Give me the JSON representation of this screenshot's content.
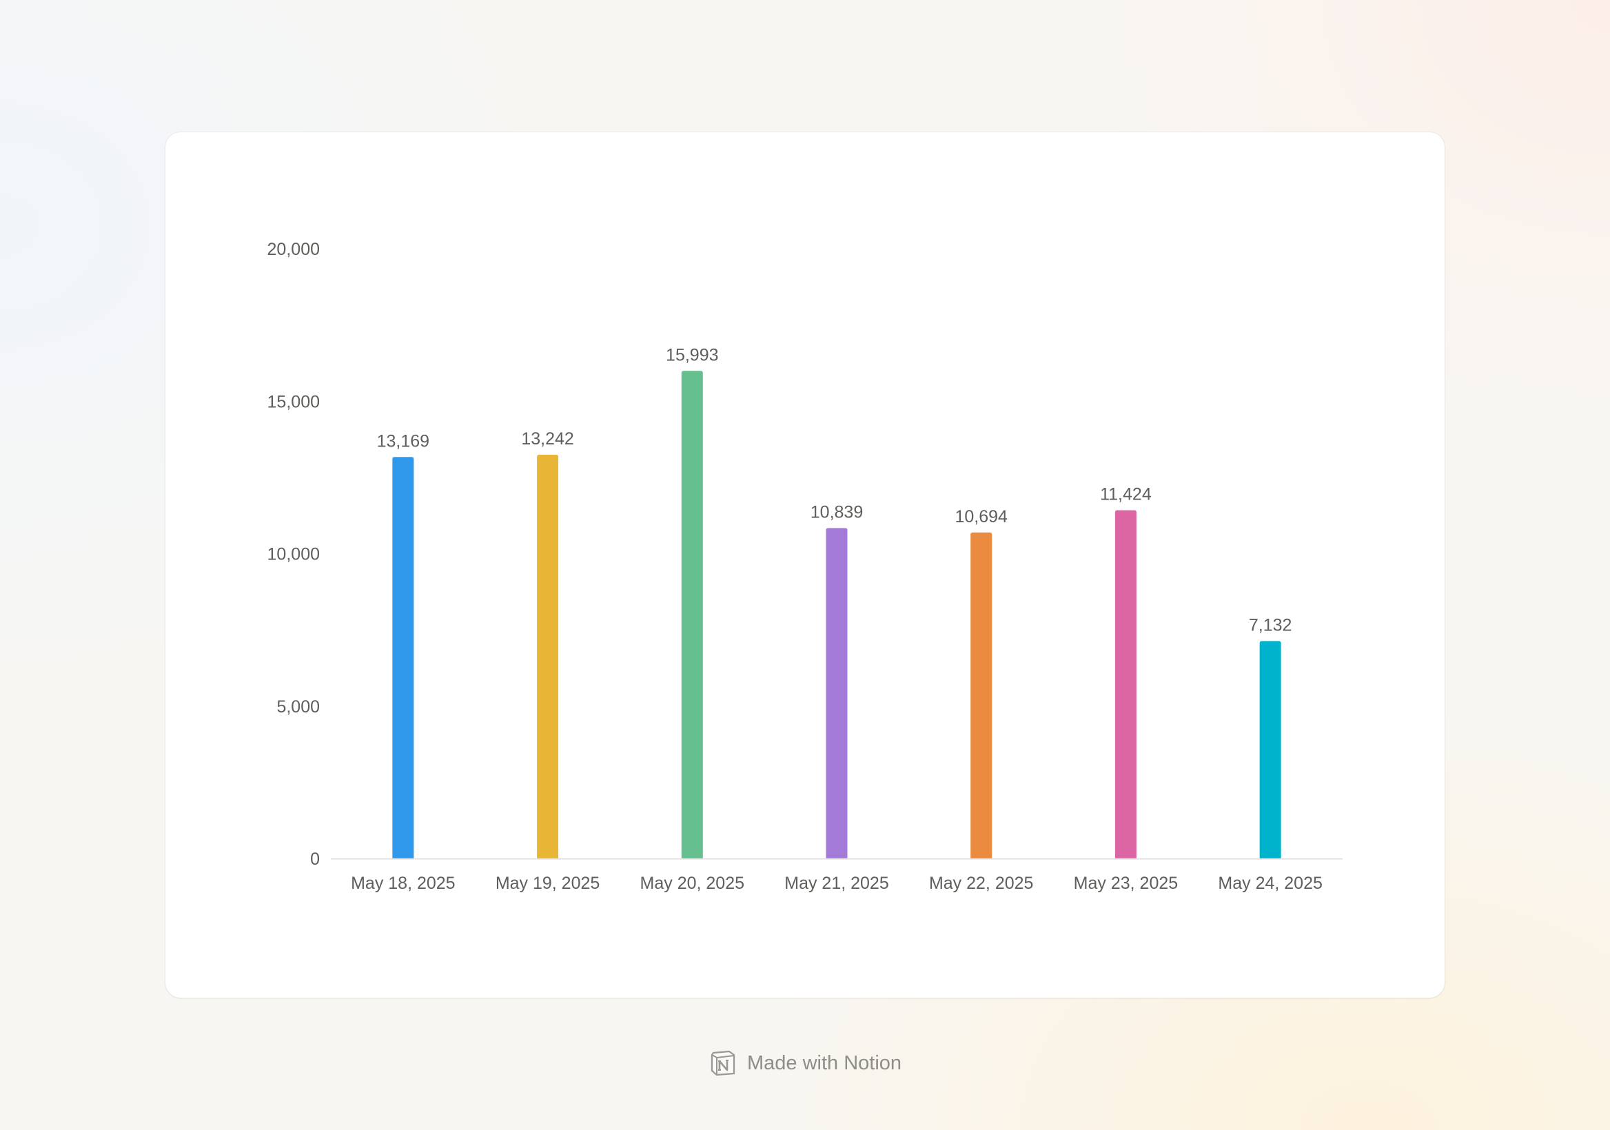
{
  "footer": {
    "text": "Made with Notion",
    "icon": "notion-logo-icon"
  },
  "chart_data": {
    "type": "bar",
    "title": "",
    "xlabel": "",
    "ylabel": "",
    "categories": [
      "May 18, 2025",
      "May 19, 2025",
      "May 20, 2025",
      "May 21, 2025",
      "May 22, 2025",
      "May 23, 2025",
      "May 24, 2025"
    ],
    "values": [
      13169,
      13242,
      15993,
      10839,
      10694,
      11424,
      7132
    ],
    "value_labels": [
      "13,169",
      "13,242",
      "15,993",
      "10,839",
      "10,694",
      "11,424",
      "7,132"
    ],
    "colors": [
      "#3098ea",
      "#e9b536",
      "#65bf8f",
      "#a47ad9",
      "#eb8b40",
      "#dc66a4",
      "#00b3cd"
    ],
    "ylim": [
      0,
      20000
    ],
    "yticks": [
      0,
      5000,
      10000,
      15000,
      20000
    ],
    "ytick_labels": [
      "0",
      "5,000",
      "10,000",
      "15,000",
      "20,000"
    ],
    "grid": false,
    "legend": "none"
  }
}
